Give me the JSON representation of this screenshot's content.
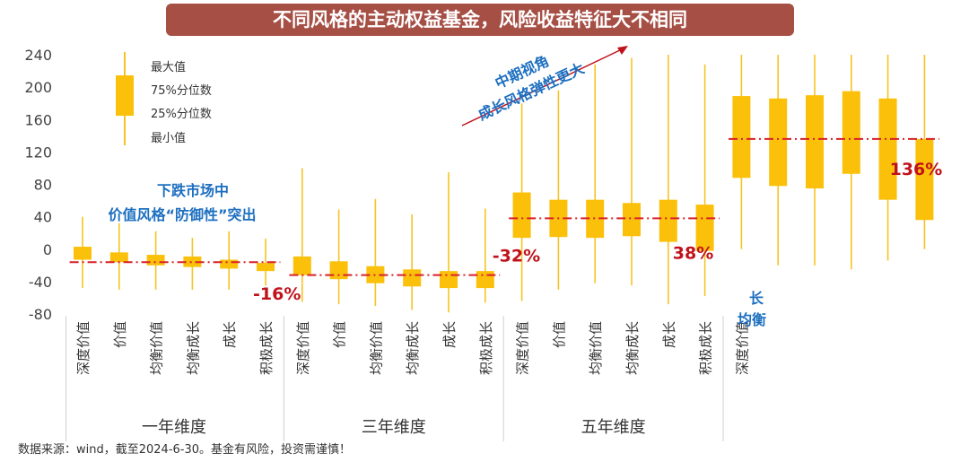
{
  "title": "不同风格的主动权益基金，风险收益特征大不相同",
  "source_note": "数据来源：wind，截至2024-6-30。基金有风险，投资需谨慎！",
  "colors": {
    "box": "#fbc00a",
    "whisker": "#f5c424",
    "refline": "#d8212a",
    "title_bg": "#a64f45",
    "annotation": "#1d6fc0",
    "pct": "#c0121b"
  },
  "legend": {
    "max": "最大值",
    "q75": "75%分位数",
    "q25": "25%分位数",
    "min": "最小值"
  },
  "annotations": {
    "down_market_1": "下跌市场中",
    "down_market_2": "价值风格“防御性”突出",
    "mid_term_1": "中期视角",
    "mid_term_2": "成长风格弹性更大",
    "long_term_1": "长",
    "long_term_2": "均衡"
  },
  "chart_data": {
    "type": "box",
    "title": "不同风格的主动权益基金，风险收益特征大不相同",
    "y_ticks": [
      240,
      200,
      160,
      120,
      80,
      40,
      0,
      -40,
      -80
    ],
    "ylim": [
      -80,
      240
    ],
    "groups": [
      {
        "name": "一年维度",
        "ref_value": -16,
        "ref_label": "-16%",
        "categories": [
          "深度价值",
          "价值",
          "均衡价值",
          "均衡成长",
          "成长",
          "积极成长"
        ],
        "min": [
          -48,
          -50,
          -50,
          -50,
          -50,
          -45
        ],
        "q25": [
          -13,
          -16,
          -20,
          -22,
          -24,
          -27
        ],
        "q75": [
          3,
          -4,
          -7,
          -9,
          -13,
          -17
        ],
        "max": [
          40,
          32,
          22,
          14,
          22,
          13
        ]
      },
      {
        "name": "三年维度",
        "ref_value": -32,
        "ref_label": "-32%",
        "categories": [
          "深度价值",
          "价值",
          "均衡价值",
          "均衡成长",
          "成长",
          "积极成长"
        ],
        "min": [
          -65,
          -68,
          -70,
          -75,
          -78,
          -66
        ],
        "q25": [
          -32,
          -37,
          -42,
          -46,
          -48,
          -48
        ],
        "q75": [
          -9,
          -15,
          -21,
          -25,
          -27,
          -27
        ],
        "max": [
          100,
          49,
          62,
          43,
          95,
          50
        ]
      },
      {
        "name": "五年维度",
        "ref_value": 38,
        "ref_label": "38%",
        "categories": [
          "深度价值",
          "价值",
          "均衡价值",
          "均衡成长",
          "成长",
          "积极成长"
        ],
        "min": [
          -64,
          -50,
          -42,
          -45,
          -68,
          -58
        ],
        "q25": [
          14,
          15,
          14,
          16,
          9,
          -2
        ],
        "q75": [
          70,
          61,
          61,
          57,
          61,
          55
        ],
        "max": [
          180,
          196,
          228,
          236,
          240,
          228
        ]
      },
      {
        "name": "",
        "ref_value": 136,
        "ref_label": "136%",
        "categories": [
          "深度价值",
          "",
          "",
          "",
          "",
          ""
        ],
        "min": [
          0,
          -20,
          -20,
          -25,
          -14,
          0
        ],
        "q25": [
          88,
          78,
          75,
          93,
          61,
          36
        ],
        "q75": [
          189,
          186,
          190,
          195,
          186,
          136
        ],
        "max": [
          240,
          240,
          240,
          240,
          240,
          240
        ]
      }
    ]
  }
}
